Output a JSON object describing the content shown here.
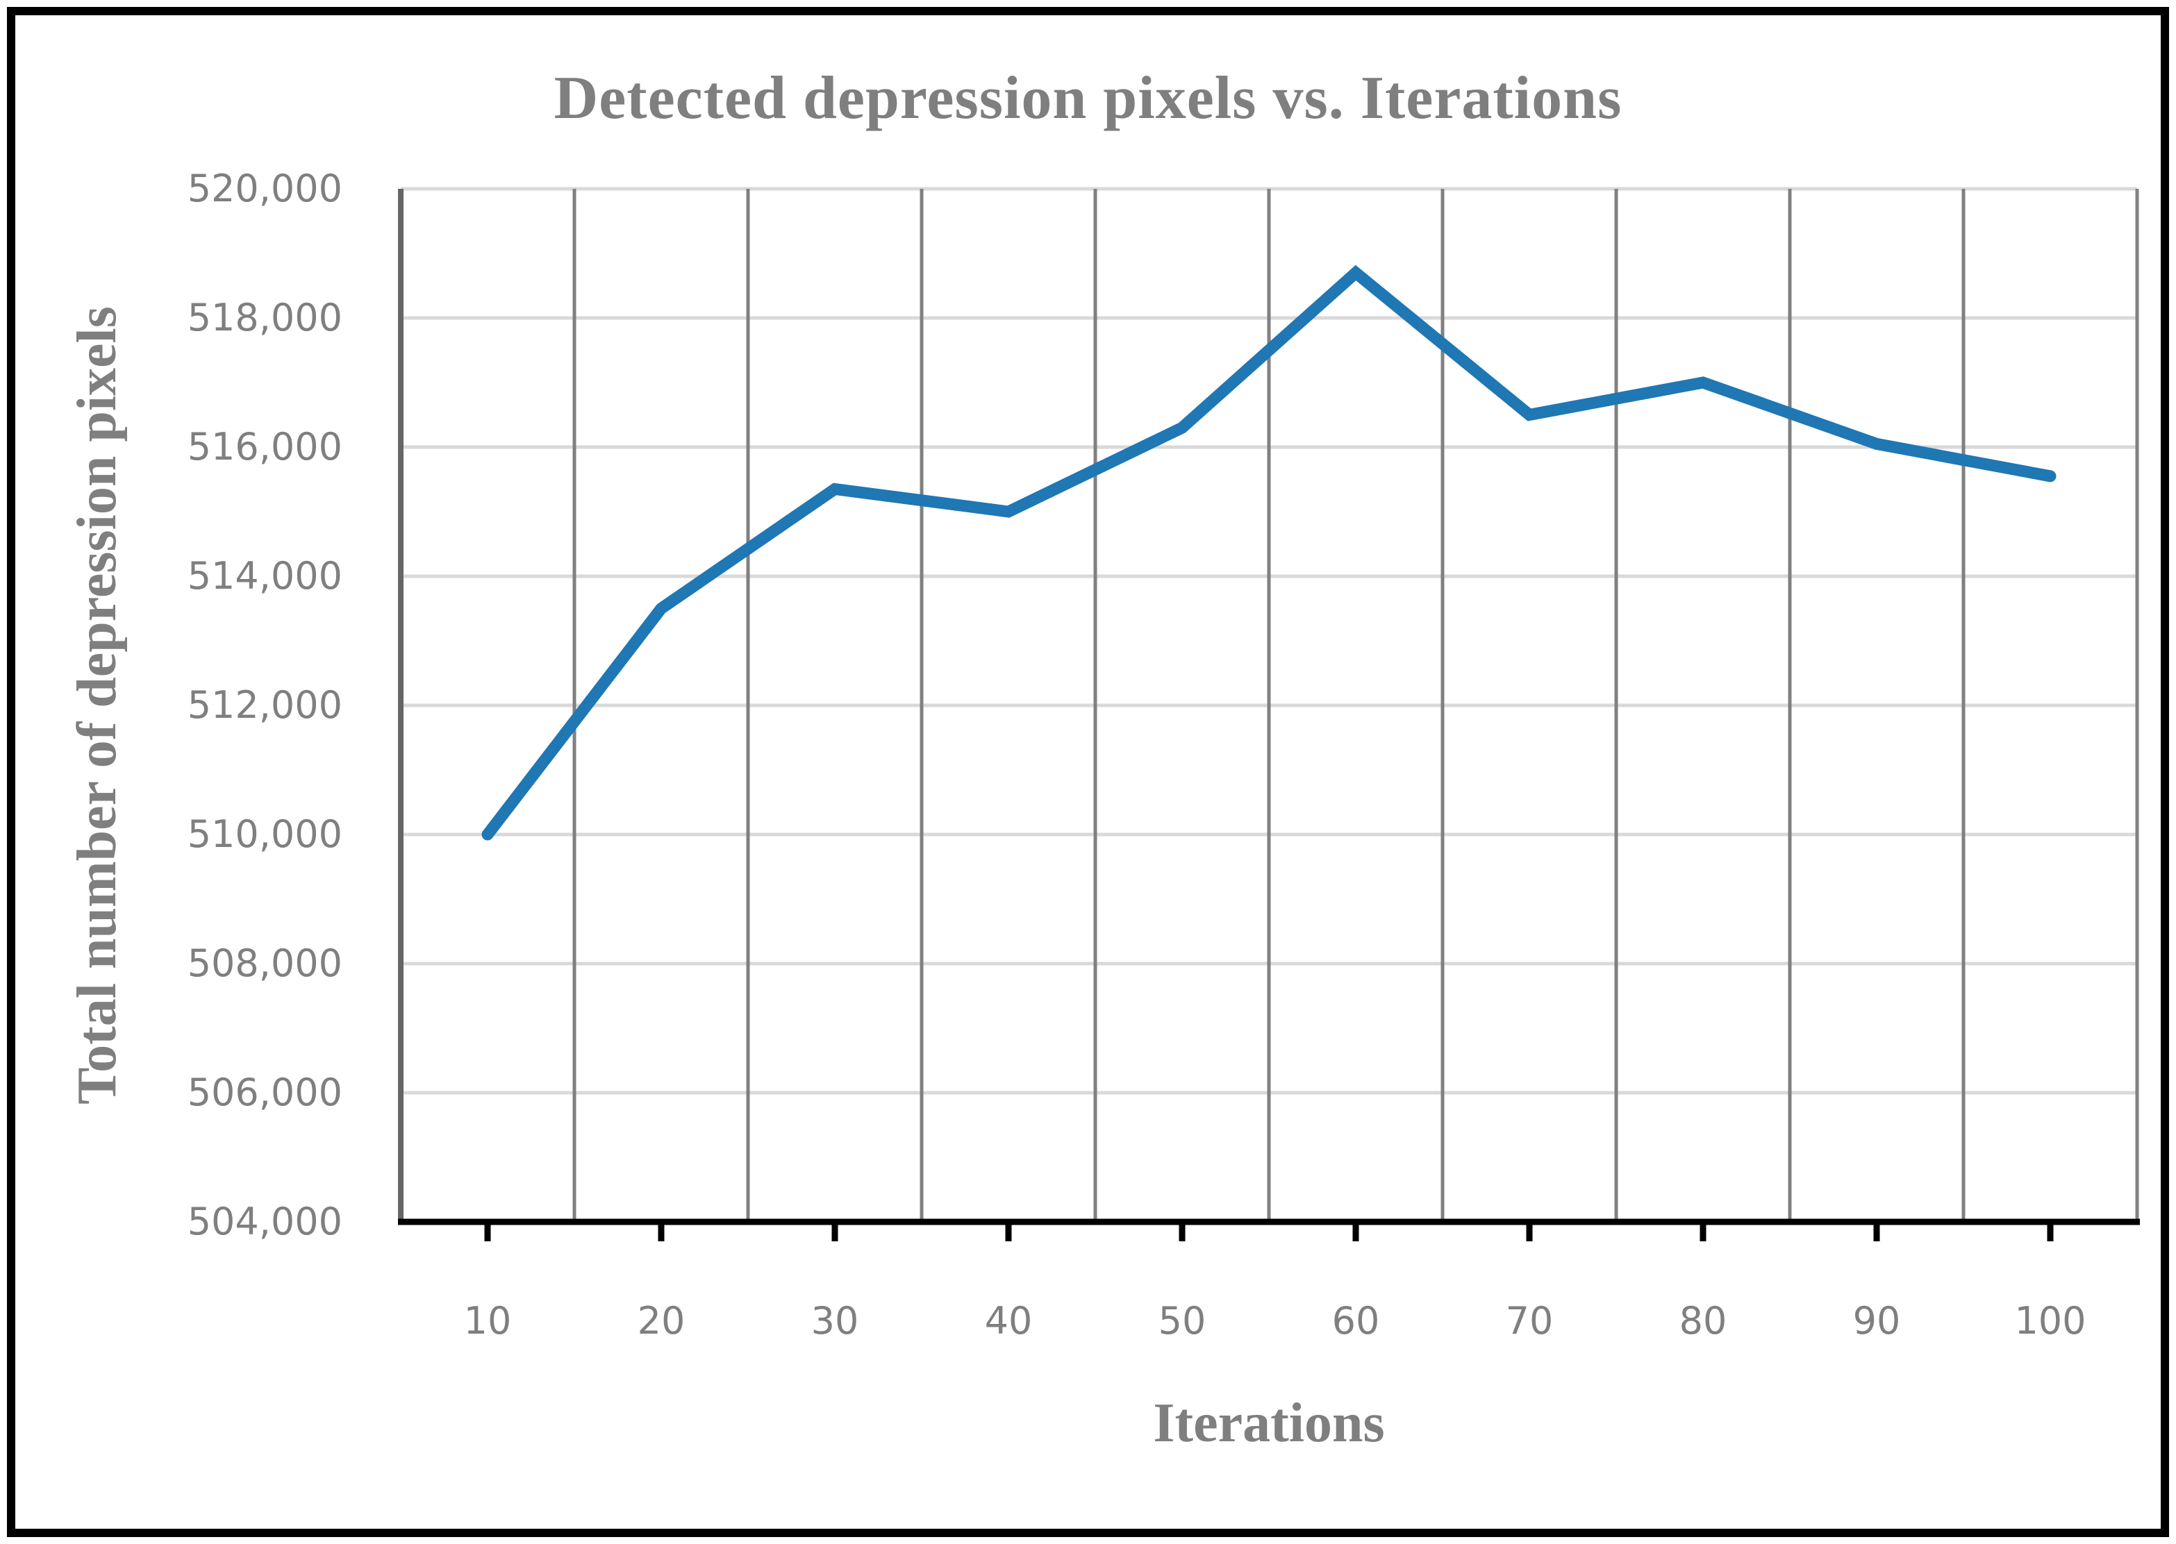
{
  "page": {
    "background": "#FFFFFF"
  },
  "chart_data": {
    "type": "line",
    "title": "Detected depression pixels vs. Iterations",
    "xlabel": "Iterations",
    "ylabel": "Total number of depression pixels",
    "x": [
      10,
      20,
      30,
      40,
      50,
      60,
      70,
      80,
      90,
      100
    ],
    "series": [
      {
        "name": "Detected depression pixels",
        "values": [
          510000,
          513500,
          515350,
          515000,
          516300,
          518700,
          516500,
          517000,
          516050,
          515550
        ]
      }
    ],
    "ylim": [
      504000,
      520000
    ],
    "ytick_step": 2000,
    "ytick_labels_top_to_bottom": [
      "520,000",
      "518,000",
      "516,000",
      "514,000",
      "512,000",
      "510,000",
      "508,000",
      "506,000",
      "504,000"
    ],
    "xtick_labels": [
      "10",
      "20",
      "30",
      "40",
      "50",
      "60",
      "70",
      "80",
      "90",
      "100"
    ],
    "grid": "on",
    "legend": "none"
  },
  "colors": {
    "line": "#1F77B4",
    "text_gray": "#7F7F7F",
    "vertical_gridline": "#808080",
    "horizontal_gridline": "#D9D9D9",
    "y_axis_line": "#666666",
    "x_axis_line": "#000000",
    "frame_border": "#000000"
  }
}
